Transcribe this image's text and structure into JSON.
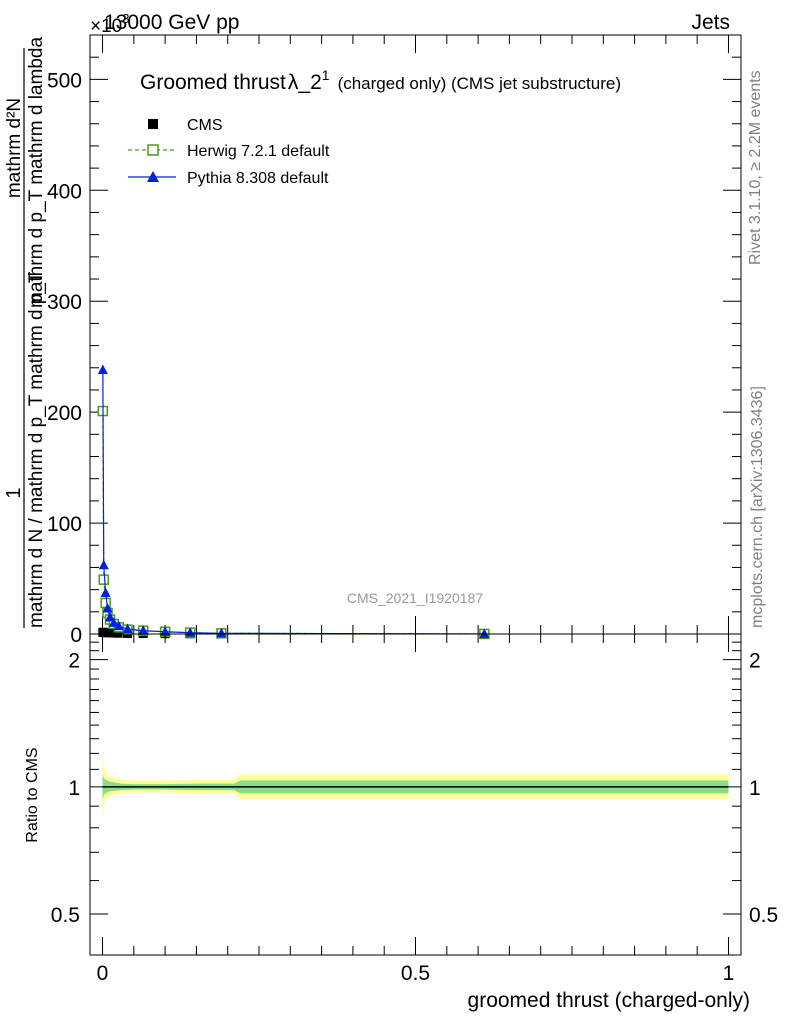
{
  "header": {
    "left": "13000 GeV pp",
    "right": "Jets",
    "multiplier": "×10",
    "multiplier_exp": "3"
  },
  "side_labels": {
    "rivet": "Rivet 3.1.10, ≥ 2.2M events",
    "mcplots": "mcplots.cern.ch [arXiv:1306.3436]"
  },
  "watermark": "CMS_2021_I1920187",
  "chart_data": [
    {
      "type": "line",
      "title": "Groomed thrust λ_2¹ (charged only) (CMS jet substructure)",
      "ylabel": "1/(mathrm d N / mathrm d p_T mathrm d p_T) · mathrm d²N / mathrm d p_T mathrm d lambda",
      "ylabel_numerator": "1",
      "ylabel_denominator": "mathrm d N / mathrm d p_T mathrm d p_T",
      "ylabel_second_numerator": "mathrm d²N",
      "ylabel_second_denominator": "mathrm d p_T mathrm d lambda",
      "xlim": [
        -0.02,
        1.02
      ],
      "ylim": [
        0,
        540
      ],
      "y_multiplier": 1000,
      "y_ticks": [
        0,
        100,
        200,
        300,
        400,
        500
      ],
      "y_tick_labels": [
        "0",
        "100",
        "200",
        "300",
        "400",
        "500"
      ],
      "grid": false,
      "legend_position": "top-left",
      "series": [
        {
          "name": "CMS",
          "color": "#000000",
          "marker": "square-filled",
          "x": [
            0.0005,
            0.002,
            0.005,
            0.01,
            0.016,
            0.025,
            0.04,
            0.065,
            0.1,
            0.14,
            0.19,
            0.61
          ],
          "y": [
            1.5,
            1.5,
            1.2,
            1.0,
            0.9,
            0.7,
            0.5,
            0.4,
            0.3,
            0.2,
            0.1,
            0.02
          ]
        },
        {
          "name": "Herwig 7.2.1 default",
          "color": "#4a9a1e",
          "marker": "square-open",
          "line_style": "dashed",
          "x": [
            0.0005,
            0.002,
            0.005,
            0.008,
            0.012,
            0.018,
            0.026,
            0.04,
            0.065,
            0.1,
            0.14,
            0.19,
            0.61
          ],
          "y": [
            201,
            49,
            28,
            19,
            13,
            9,
            6,
            4,
            3,
            2,
            1.2,
            0.6,
            0.05
          ]
        },
        {
          "name": "Pythia 8.308 default",
          "color": "#0022dd",
          "marker": "triangle-filled",
          "line_style": "solid",
          "x": [
            0.0005,
            0.002,
            0.005,
            0.008,
            0.012,
            0.018,
            0.026,
            0.04,
            0.065,
            0.1,
            0.14,
            0.19,
            0.61
          ],
          "y": [
            238,
            62,
            37,
            23,
            15,
            10,
            7,
            4.5,
            3,
            2,
            1.2,
            0.6,
            0.05
          ]
        }
      ]
    },
    {
      "type": "area",
      "ylabel": "Ratio to CMS",
      "xlabel": "groomed thrust (charged-only)",
      "xlim": [
        -0.02,
        1.02
      ],
      "ylim": [
        0.4,
        2.3
      ],
      "y_scale": "log",
      "y_ticks": [
        0.5,
        1,
        2
      ],
      "y_tick_labels": [
        "0.5",
        "1",
        "2"
      ],
      "x_ticks": [
        0,
        0.5,
        1
      ],
      "x_tick_labels": [
        "0",
        "0.5",
        "1"
      ],
      "reference": 1,
      "bands": [
        {
          "color": "#ffff99",
          "x": [
            0.0,
            0.002,
            0.005,
            0.01,
            0.03,
            0.05,
            0.1,
            0.15,
            0.21,
            0.22,
            1.0
          ],
          "lower": [
            0.84,
            0.9,
            0.93,
            0.95,
            0.965,
            0.97,
            0.97,
            0.965,
            0.965,
            0.935,
            0.935
          ],
          "upper": [
            1.2,
            1.12,
            1.08,
            1.06,
            1.04,
            1.035,
            1.035,
            1.04,
            1.04,
            1.07,
            1.07
          ]
        },
        {
          "color": "#88dd88",
          "x": [
            0.0,
            0.002,
            0.005,
            0.01,
            0.03,
            0.05,
            0.1,
            0.15,
            0.21,
            0.22,
            1.0
          ],
          "lower": [
            0.93,
            0.955,
            0.965,
            0.975,
            0.983,
            0.985,
            0.985,
            0.982,
            0.982,
            0.965,
            0.965
          ],
          "upper": [
            1.07,
            1.05,
            1.04,
            1.03,
            1.018,
            1.015,
            1.015,
            1.018,
            1.018,
            1.035,
            1.035
          ]
        }
      ]
    }
  ]
}
